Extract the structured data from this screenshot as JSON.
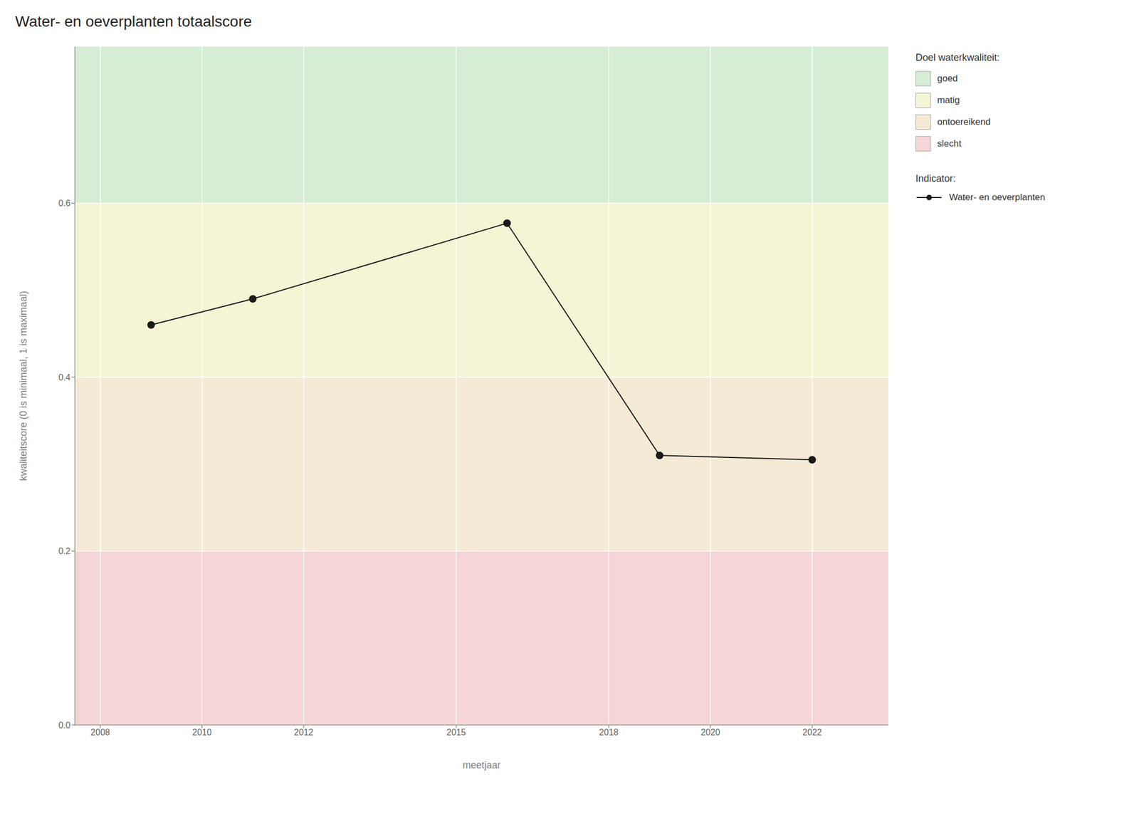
{
  "chart_data": {
    "type": "line",
    "title": "Water- en oeverplanten totaalscore",
    "x_label": "meetjaar",
    "y_label": "kwaliteitscore (0 is minimaal, 1 is maximaal)",
    "x": [
      2009,
      2011,
      2016,
      2019,
      2022
    ],
    "series": [
      {
        "name": "Water- en oeverplanten",
        "color": "#1a1a1a",
        "marker": "o",
        "values": [
          0.46,
          0.49,
          0.577,
          0.31,
          0.305
        ]
      }
    ],
    "xlim": [
      2007.5,
      2023.5
    ],
    "ylim": [
      0.0,
      0.78
    ],
    "xticks": [
      2008,
      2010,
      2012,
      2015,
      2018,
      2020,
      2022
    ],
    "yticks": [
      {
        "value": 0.0,
        "label": "0.0"
      },
      0.2,
      0.4,
      0.6
    ],
    "grid": true,
    "legend": "right",
    "band_legend_title": "Doel waterkwaliteit:",
    "series_legend_title": "Indicator:",
    "bands": [
      {
        "name": "goed",
        "from": 0.6,
        "to": 0.78,
        "color": "#d5ecd5"
      },
      {
        "name": "matig",
        "from": 0.4,
        "to": 0.6,
        "color": "#f5f5d5"
      },
      {
        "name": "ontoereikend",
        "from": 0.2,
        "to": 0.4,
        "color": "#f5ead5"
      },
      {
        "name": "slecht",
        "from": 0.0,
        "to": 0.2,
        "color": "#f5d5d5"
      }
    ]
  }
}
